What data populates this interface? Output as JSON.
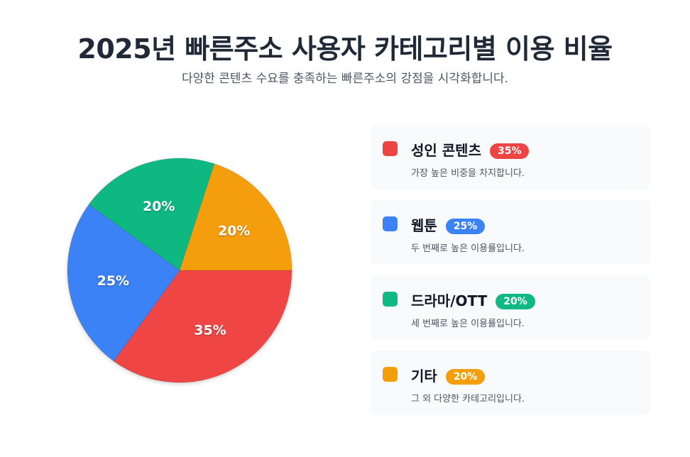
{
  "header": {
    "title": "2025년 빠른주소 사용자 카테고리별 이용 비율",
    "subtitle": "다양한 콘텐츠 수요를 충족하는 빠른주소의 강점을 시각화합니다."
  },
  "chart_data": {
    "type": "pie",
    "title": "2025년 빠른주소 사용자 카테고리별 이용 비율",
    "subtitle": "다양한 콘텐츠 수요를 충족하는 빠른주소의 강점을 시각화합니다.",
    "unit": "%",
    "categories": [
      "성인 콘텐츠",
      "웹툰",
      "드라마/OTT",
      "기타"
    ],
    "values": [
      35,
      25,
      20,
      20
    ],
    "labels": [
      "35%",
      "25%",
      "20%",
      "20%"
    ],
    "colors": [
      "#ef4444",
      "#3b82f6",
      "#10b981",
      "#f59e0b"
    ],
    "legend_placement": "right"
  },
  "legend": {
    "items": [
      {
        "name": "성인 콘텐츠",
        "badge": "35%",
        "desc": "가장 높은 비중을 차지합니다.",
        "color": "#ef4444"
      },
      {
        "name": "웹툰",
        "badge": "25%",
        "desc": "두 번째로 높은 이용률입니다.",
        "color": "#3b82f6"
      },
      {
        "name": "드라마/OTT",
        "badge": "20%",
        "desc": "세 번째로 높은 이용률입니다.",
        "color": "#10b981"
      },
      {
        "name": "기타",
        "badge": "20%",
        "desc": "그 외 다양한 카테고리입니다.",
        "color": "#f59e0b"
      }
    ]
  }
}
